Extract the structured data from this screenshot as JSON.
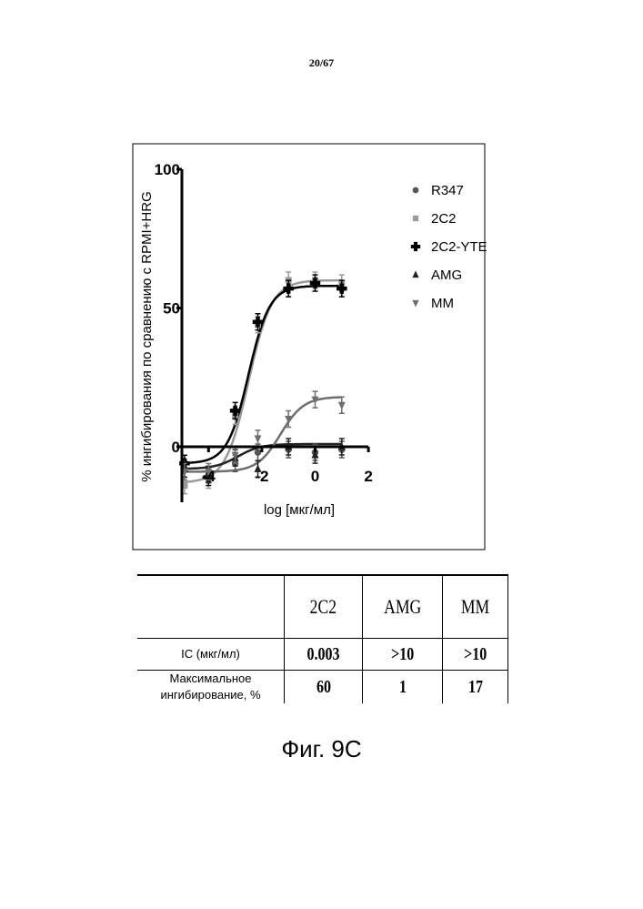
{
  "page": {
    "number": "20/67"
  },
  "chart_data": {
    "type": "scatter",
    "ylabel": "% ингибирования по сравнению с RPMI+HRG",
    "xlabel": "log [мкг/мл]",
    "xlim": [
      -5,
      2
    ],
    "ylim": [
      -20,
      100
    ],
    "xticks": [
      -4,
      -2,
      0,
      2
    ],
    "yticks": [
      0,
      50,
      100
    ],
    "xtick_labels": [
      "-4",
      "-2",
      "0",
      "2"
    ],
    "ytick_labels": [
      "0",
      "50",
      "100"
    ],
    "legend_position": "top-right",
    "series": [
      {
        "name": "R347",
        "marker": "circle",
        "color": "#555555",
        "x": [
          -4.9,
          -4,
          -3,
          -2.15,
          -1,
          0,
          1
        ],
        "y": [
          -8,
          -10,
          -6,
          -2,
          -1,
          -2,
          -1
        ]
      },
      {
        "name": "2C2",
        "marker": "square",
        "color": "#9a9a9a",
        "x": [
          -4.9,
          -4,
          -3,
          -2.15,
          -1,
          0,
          1
        ],
        "y": [
          -14,
          -12,
          11,
          44,
          60,
          60,
          59
        ],
        "fit": {
          "bottom": -13,
          "top": 60,
          "logEC50": -2.5,
          "hill": 1.0
        }
      },
      {
        "name": "2C2-YTE",
        "marker": "plus",
        "color": "#000000",
        "x": [
          -4.9,
          -4,
          -3,
          -2.15,
          -1,
          0,
          1
        ],
        "y": [
          -6,
          -11,
          13,
          45,
          57,
          59,
          57
        ],
        "fit": {
          "bottom": -6,
          "top": 58,
          "logEC50": -2.5,
          "hill": 1.1
        }
      },
      {
        "name": "AMG",
        "marker": "triangle-up",
        "color": "#222222",
        "x": [
          -4.9,
          -4,
          -3,
          -2.15,
          -1,
          0,
          1
        ],
        "y": [
          -8,
          -10,
          -4,
          -8,
          0,
          -3,
          0
        ],
        "fit": {
          "bottom": -8,
          "top": 1,
          "logEC50": -2.9,
          "hill": 1.0
        }
      },
      {
        "name": "MM",
        "marker": "triangle-down",
        "color": "#6e6e6e",
        "x": [
          -4.9,
          -4,
          -3,
          -2.15,
          -1,
          0,
          1
        ],
        "y": [
          -9,
          -9,
          -3,
          3,
          10,
          17,
          15
        ],
        "fit": {
          "bottom": -9,
          "top": 18,
          "logEC50": -1.3,
          "hill": 1.0
        }
      }
    ]
  },
  "table": {
    "columns": [
      "",
      "2C2",
      "AMG",
      "MM"
    ],
    "rows": [
      {
        "label": "IC (мкг/мл)",
        "values": [
          "0.003",
          ">10",
          ">10"
        ]
      },
      {
        "label_line1": "Максимальное",
        "label_line2": "ингибирование, %",
        "values": [
          "60",
          "1",
          "17"
        ]
      }
    ]
  },
  "caption": "Фиг. 9С"
}
